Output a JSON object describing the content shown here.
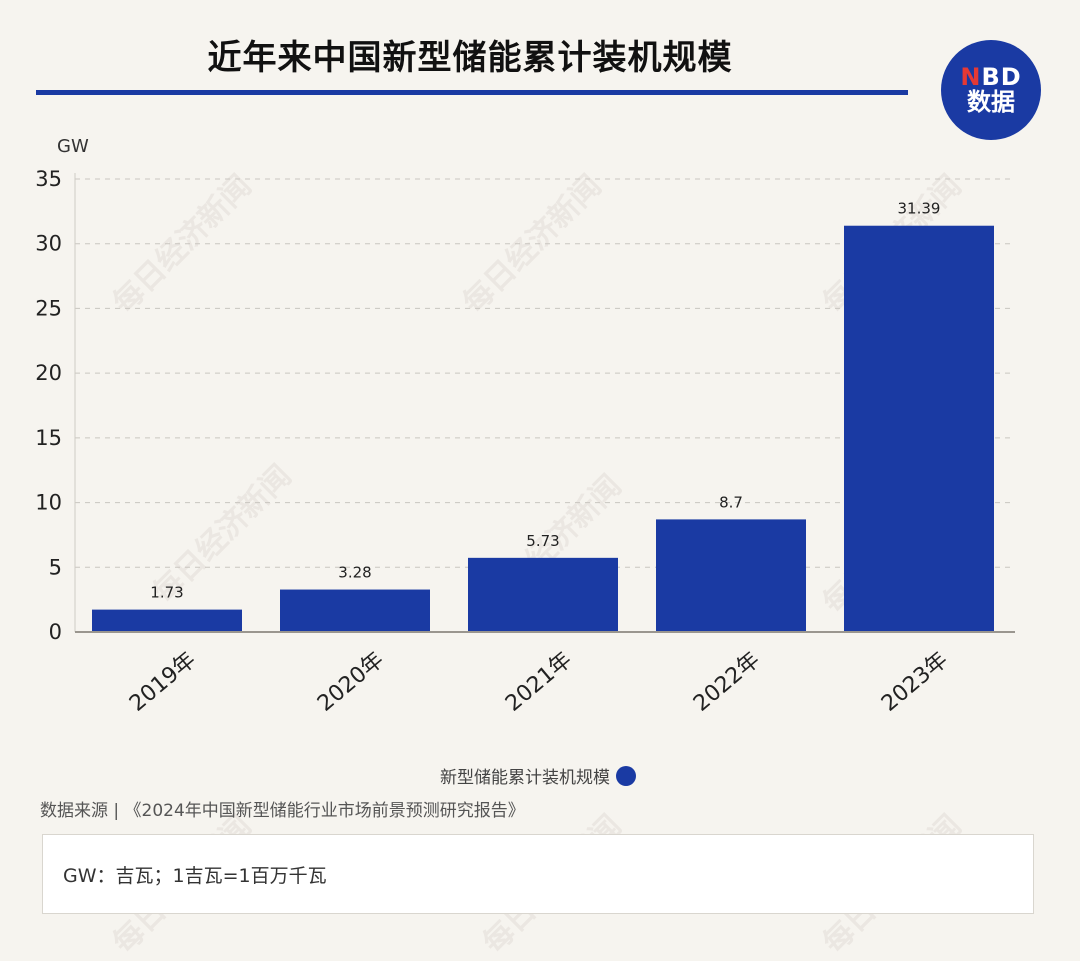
{
  "title": "近年来中国新型储能累计装机规模",
  "logo": {
    "n": "N",
    "bd": "BD",
    "line2": "数据"
  },
  "watermark_text": "每日经济新闻",
  "legend_label": "新型储能累计装机规模",
  "source": "数据来源 | 《2024年中国新型储能行业市场前景预测研究报告》",
  "note": "GW：吉瓦；1吉瓦=1百万千瓦",
  "colors": {
    "bar": "#1a3aa3",
    "rule": "#1a3aa3",
    "background": "#f6f4ef"
  },
  "chart_data": {
    "type": "bar",
    "title": "近年来中国新型储能累计装机规模",
    "ylabel": "GW",
    "xlabel": "",
    "categories": [
      "2019年",
      "2020年",
      "2021年",
      "2022年",
      "2023年"
    ],
    "series": [
      {
        "name": "新型储能累计装机规模",
        "values": [
          1.73,
          3.28,
          5.73,
          8.7,
          31.39
        ]
      }
    ],
    "data_labels": [
      "1.73",
      "3.28",
      "5.73",
      "8.7",
      "31.39"
    ],
    "ylim": [
      0,
      35
    ],
    "yticks": [
      0,
      5,
      10,
      15,
      20,
      25,
      30,
      35
    ],
    "grid": true,
    "legend": "bottom"
  }
}
